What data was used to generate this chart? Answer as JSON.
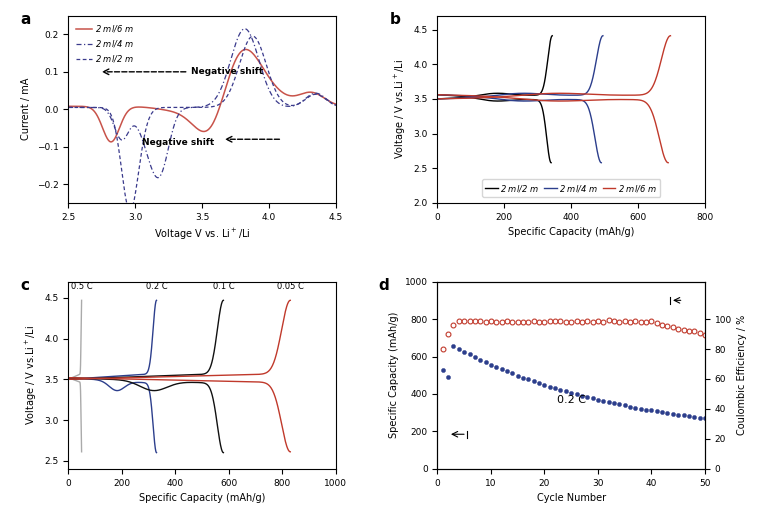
{
  "fig_width": 7.58,
  "fig_height": 5.21,
  "dpi": 100,
  "panel_labels": [
    "a",
    "b",
    "c",
    "d"
  ],
  "panel_a": {
    "xlabel": "Voltage V vs. Li⁺/Li",
    "ylabel": "Current / mA",
    "xlim": [
      2.5,
      4.5
    ],
    "ylim": [
      -0.25,
      0.25
    ],
    "xticks": [
      2.5,
      3.0,
      3.5,
      4.0,
      4.5
    ],
    "yticks": [
      -0.2,
      -0.1,
      0.0,
      0.1,
      0.2
    ],
    "legend_labels": [
      "2 ml/6 m",
      "2 ml/4 m",
      "2 ml/2 m"
    ],
    "colors": [
      "#c8534a",
      "#3a3a8c",
      "#3a3a8c"
    ],
    "ann_top_text": "Negative shift",
    "ann_bot_text": "Negative shift"
  },
  "panel_b": {
    "xlabel": "Specific Capacity (mAh/g)",
    "ylabel": "Voltage / V vs.Li⁺/Li",
    "xlim": [
      0,
      800
    ],
    "ylim": [
      2.0,
      4.7
    ],
    "xticks": [
      0,
      200,
      400,
      600,
      800
    ],
    "yticks": [
      2.0,
      2.5,
      3.0,
      3.5,
      4.0,
      4.5
    ],
    "legend_labels": [
      "2 ml/2 m",
      "2 ml/4 m",
      "2 ml/6 m"
    ],
    "colors": [
      "#000000",
      "#2c3e8c",
      "#c0392b"
    ],
    "cap_2m": 340,
    "cap_4m": 490,
    "cap_6m": 690
  },
  "panel_c": {
    "xlabel": "Specific Capacity (mAh/g)",
    "ylabel": "Voltage / V vs.Li⁺/Li",
    "xlim": [
      0,
      1000
    ],
    "ylim": [
      2.4,
      4.7
    ],
    "xticks": [
      0,
      200,
      400,
      600,
      800,
      1000
    ],
    "yticks": [
      2.5,
      3.0,
      3.5,
      4.0,
      4.5
    ],
    "rate_labels": [
      "0.5 C",
      "0.2 C",
      "0.1 C",
      "0.05 C"
    ],
    "rate_caps": [
      50,
      330,
      580,
      830
    ],
    "colors": [
      "#aaaaaa",
      "#2c3e8c",
      "#111111",
      "#c0392b"
    ]
  },
  "panel_d": {
    "xlabel": "Cycle Number",
    "ylabel_left": "Specific Capacity (mAh/g)",
    "ylabel_right": "Coulombic Efficiency / %",
    "xlim": [
      0,
      50
    ],
    "ylim_left": [
      0,
      1000
    ],
    "ylim_right": [
      0,
      125
    ],
    "yticks_left": [
      0,
      200,
      400,
      600,
      800,
      1000
    ],
    "yticks_right": [
      0,
      20,
      40,
      60,
      80,
      100
    ],
    "xticks": [
      0,
      10,
      20,
      30,
      40,
      50
    ],
    "annotation": "0.2 C",
    "ann_x": 25,
    "ann_y": 350,
    "color_cap": "#2c3e8c",
    "color_ce": "#c0392b"
  }
}
